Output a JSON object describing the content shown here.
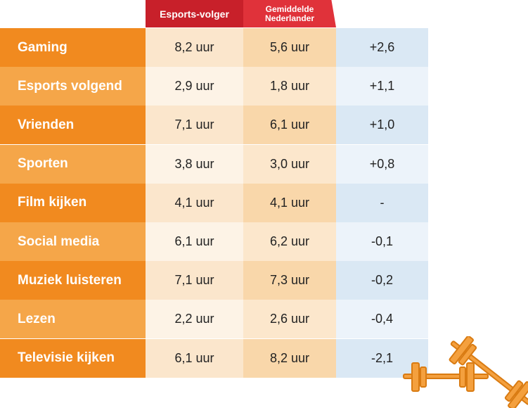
{
  "colors": {
    "header_esports": "#c8202a",
    "header_avg": "#e0323a",
    "label_dark": "#f18a1f",
    "label_light": "#f5a649",
    "esports_dark": "#fbe6cc",
    "esports_light": "#fdf3e6",
    "avg_dark": "#f9d7aa",
    "avg_light": "#fce7cc",
    "diff_dark": "#dae8f4",
    "diff_light": "#ecf3fa",
    "barbell": "#f4a03e",
    "barbell_outline": "#d97b12"
  },
  "chart_data": {
    "type": "table",
    "columns": [
      "Esports-volger",
      "Gemiddelde\nNederlander"
    ],
    "rows": [
      {
        "label": "Gaming",
        "esports": "8,2 uur",
        "average": "5,6 uur",
        "diff": "+2,6"
      },
      {
        "label": "Esports volgend",
        "esports": "2,9 uur",
        "average": "1,8 uur",
        "diff": "+1,1"
      },
      {
        "label": "Vrienden",
        "esports": "7,1 uur",
        "average": "6,1 uur",
        "diff": "+1,0"
      },
      {
        "label": "Sporten",
        "esports": "3,8 uur",
        "average": "3,0 uur",
        "diff": "+0,8"
      },
      {
        "label": "Film kijken",
        "esports": "4,1 uur",
        "average": "4,1 uur",
        "diff": "-"
      },
      {
        "label": "Social media",
        "esports": "6,1 uur",
        "average": "6,2 uur",
        "diff": "-0,1"
      },
      {
        "label": "Muziek luisteren",
        "esports": "7,1 uur",
        "average": "7,3 uur",
        "diff": "-0,2"
      },
      {
        "label": "Lezen",
        "esports": "2,2 uur",
        "average": "2,6 uur",
        "diff": "-0,4"
      },
      {
        "label": "Televisie kijken",
        "esports": "6,1 uur",
        "average": "8,2 uur",
        "diff": "-2,1"
      }
    ]
  },
  "decoration": {
    "icon": "barbell-icon"
  }
}
